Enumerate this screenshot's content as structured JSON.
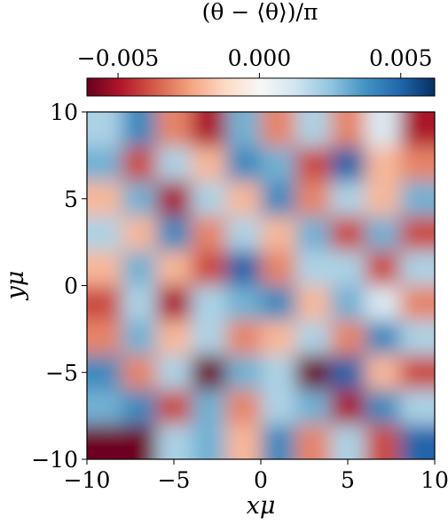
{
  "chart_data": {
    "type": "heatmap",
    "title": "(θ − ⟨θ⟩)/π",
    "xlabel": "xμ",
    "ylabel": "yμ",
    "xlim": [
      -10,
      10
    ],
    "ylim": [
      -10,
      10
    ],
    "xticks": [
      {
        "value": -10,
        "label": "−10"
      },
      {
        "value": -5,
        "label": "−5"
      },
      0,
      5,
      10
    ],
    "yticks": [
      {
        "value": -10,
        "label": "−10"
      },
      {
        "value": -5,
        "label": "−5"
      },
      0,
      5,
      10
    ],
    "colormap": "RdBu",
    "clim": [
      -0.0061,
      0.0062
    ],
    "cticks": [
      {
        "value": -0.005,
        "label": "−0.005"
      },
      {
        "value": 0,
        "label": "0.000"
      },
      {
        "value": 0.005,
        "label": "0.005"
      }
    ],
    "z": [
      [
        0.002,
        0.004,
        -0.003,
        -0.005,
        0.003,
        -0.003,
        0.002,
        -0.003,
        0.001,
        -0.005
      ],
      [
        0.003,
        -0.004,
        0.002,
        -0.002,
        0.004,
        0.003,
        -0.004,
        0.005,
        -0.002,
        -0.003
      ],
      [
        -0.002,
        0.003,
        -0.005,
        0.002,
        -0.002,
        0.004,
        -0.003,
        0.002,
        -0.002,
        0.003
      ],
      [
        0.002,
        -0.002,
        0.004,
        -0.003,
        0.002,
        -0.002,
        0.003,
        -0.004,
        0.003,
        -0.004
      ],
      [
        -0.002,
        0.003,
        -0.002,
        -0.004,
        0.005,
        -0.003,
        0.002,
        0.002,
        -0.004,
        0.002
      ],
      [
        -0.004,
        0.002,
        -0.005,
        0.002,
        0.003,
        0.004,
        -0.002,
        0.003,
        0.001,
        -0.003
      ],
      [
        -0.003,
        0.003,
        -0.002,
        0.002,
        -0.003,
        -0.002,
        0.002,
        -0.003,
        0.004,
        0.002
      ],
      [
        0.004,
        -0.003,
        0.002,
        -0.006,
        0.003,
        0.002,
        -0.006,
        0.005,
        -0.002,
        -0.004
      ],
      [
        0.003,
        0.004,
        -0.004,
        0.003,
        -0.003,
        0.002,
        0.003,
        -0.005,
        0.004,
        0.002
      ],
      [
        -0.006,
        -0.006,
        0.002,
        0.003,
        -0.002,
        0.004,
        -0.003,
        0.002,
        -0.004,
        0.005
      ]
    ]
  }
}
